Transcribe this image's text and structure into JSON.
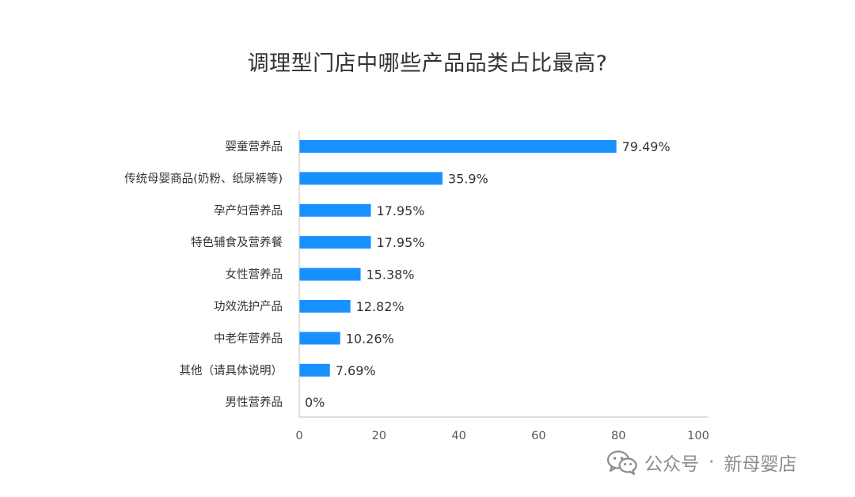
{
  "title": "调理型门店中哪些产品品类占比最高?",
  "watermark": {
    "prefix": "公众号",
    "separator": "·",
    "account": "新母婴店",
    "icon": "wechat-icon"
  },
  "colors": {
    "bar": "#1890ff",
    "axis": "#bfbfbf",
    "text": "#333333",
    "tick_text": "#595959",
    "watermark": "#8c8c8c"
  },
  "chart_data": {
    "type": "bar",
    "orientation": "horizontal",
    "title": "调理型门店中哪些产品品类占比最高?",
    "xlabel": "",
    "ylabel": "",
    "xlim": [
      0,
      100
    ],
    "xticks": [
      0,
      20,
      40,
      60,
      80,
      100
    ],
    "grid": false,
    "legend": "none",
    "categories": [
      "婴童营养品",
      "传统母婴商品(奶粉、纸尿裤等)",
      "孕产妇营养品",
      "特色辅食及营养餐",
      "女性营养品",
      "功效洗护产品",
      "中老年营养品",
      "其他（请具体说明）",
      "男性营养品"
    ],
    "values": [
      79.49,
      35.9,
      17.95,
      17.95,
      15.38,
      12.82,
      10.26,
      7.69,
      0
    ],
    "value_labels": [
      "79.49%",
      "35.9%",
      "17.95%",
      "17.95%",
      "15.38%",
      "12.82%",
      "10.26%",
      "7.69%",
      "0%"
    ]
  }
}
